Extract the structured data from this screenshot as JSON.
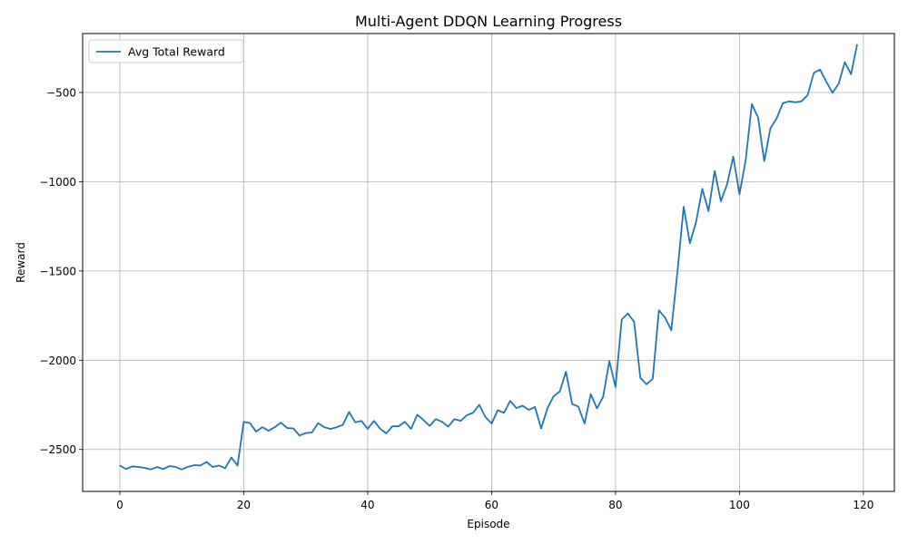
{
  "chart_data": {
    "type": "line",
    "title": "Multi-Agent DDQN Learning Progress",
    "xlabel": "Episode",
    "ylabel": "Reward",
    "xlim": [
      -6,
      125
    ],
    "ylim": [
      -2735,
      -170
    ],
    "xticks": [
      0,
      20,
      40,
      60,
      80,
      100,
      120
    ],
    "yticks": [
      -2500,
      -2000,
      -1500,
      -1000,
      -500
    ],
    "grid": true,
    "legend": "top-left",
    "series": [
      {
        "name": "Avg Total Reward",
        "color": "#1f77b4",
        "x": [
          0,
          1,
          2,
          3,
          4,
          5,
          6,
          7,
          8,
          9,
          10,
          11,
          12,
          13,
          14,
          15,
          16,
          17,
          18,
          19,
          20,
          21,
          22,
          23,
          24,
          25,
          26,
          27,
          28,
          29,
          30,
          31,
          32,
          33,
          34,
          35,
          36,
          37,
          38,
          39,
          40,
          41,
          42,
          43,
          44,
          45,
          46,
          47,
          48,
          49,
          50,
          51,
          52,
          53,
          54,
          55,
          56,
          57,
          58,
          59,
          60,
          61,
          62,
          63,
          64,
          65,
          66,
          67,
          68,
          69,
          70,
          71,
          72,
          73,
          74,
          75,
          76,
          77,
          78,
          79,
          80,
          81,
          82,
          83,
          84,
          85,
          86,
          87,
          88,
          89,
          90,
          91,
          92,
          93,
          94,
          95,
          96,
          97,
          98,
          99,
          100,
          101,
          102,
          103,
          104,
          105,
          106,
          107,
          108,
          109,
          110,
          111,
          112,
          113,
          114,
          115,
          116,
          117,
          118,
          119
        ],
        "values": [
          -2590,
          -2610,
          -2595,
          -2598,
          -2603,
          -2612,
          -2598,
          -2610,
          -2593,
          -2598,
          -2612,
          -2597,
          -2588,
          -2590,
          -2570,
          -2598,
          -2590,
          -2605,
          -2545,
          -2590,
          -2345,
          -2352,
          -2400,
          -2375,
          -2395,
          -2375,
          -2350,
          -2380,
          -2382,
          -2422,
          -2408,
          -2405,
          -2352,
          -2375,
          -2385,
          -2375,
          -2362,
          -2290,
          -2348,
          -2340,
          -2385,
          -2340,
          -2383,
          -2410,
          -2370,
          -2370,
          -2345,
          -2385,
          -2305,
          -2335,
          -2368,
          -2330,
          -2345,
          -2372,
          -2330,
          -2340,
          -2308,
          -2295,
          -2250,
          -2318,
          -2355,
          -2280,
          -2295,
          -2228,
          -2268,
          -2255,
          -2278,
          -2262,
          -2382,
          -2270,
          -2202,
          -2175,
          -2065,
          -2245,
          -2260,
          -2355,
          -2190,
          -2270,
          -2205,
          -2005,
          -2150,
          -1772,
          -1738,
          -1785,
          -2098,
          -2135,
          -2105,
          -1720,
          -1762,
          -1832,
          -1500,
          -1140,
          -1345,
          -1225,
          -1040,
          -1165,
          -940,
          -1110,
          -1015,
          -860,
          -1070,
          -880,
          -565,
          -640,
          -885,
          -700,
          -645,
          -560,
          -550,
          -555,
          -550,
          -515,
          -390,
          -372,
          -438,
          -502,
          -452,
          -330,
          -398,
          -230
        ]
      }
    ]
  }
}
